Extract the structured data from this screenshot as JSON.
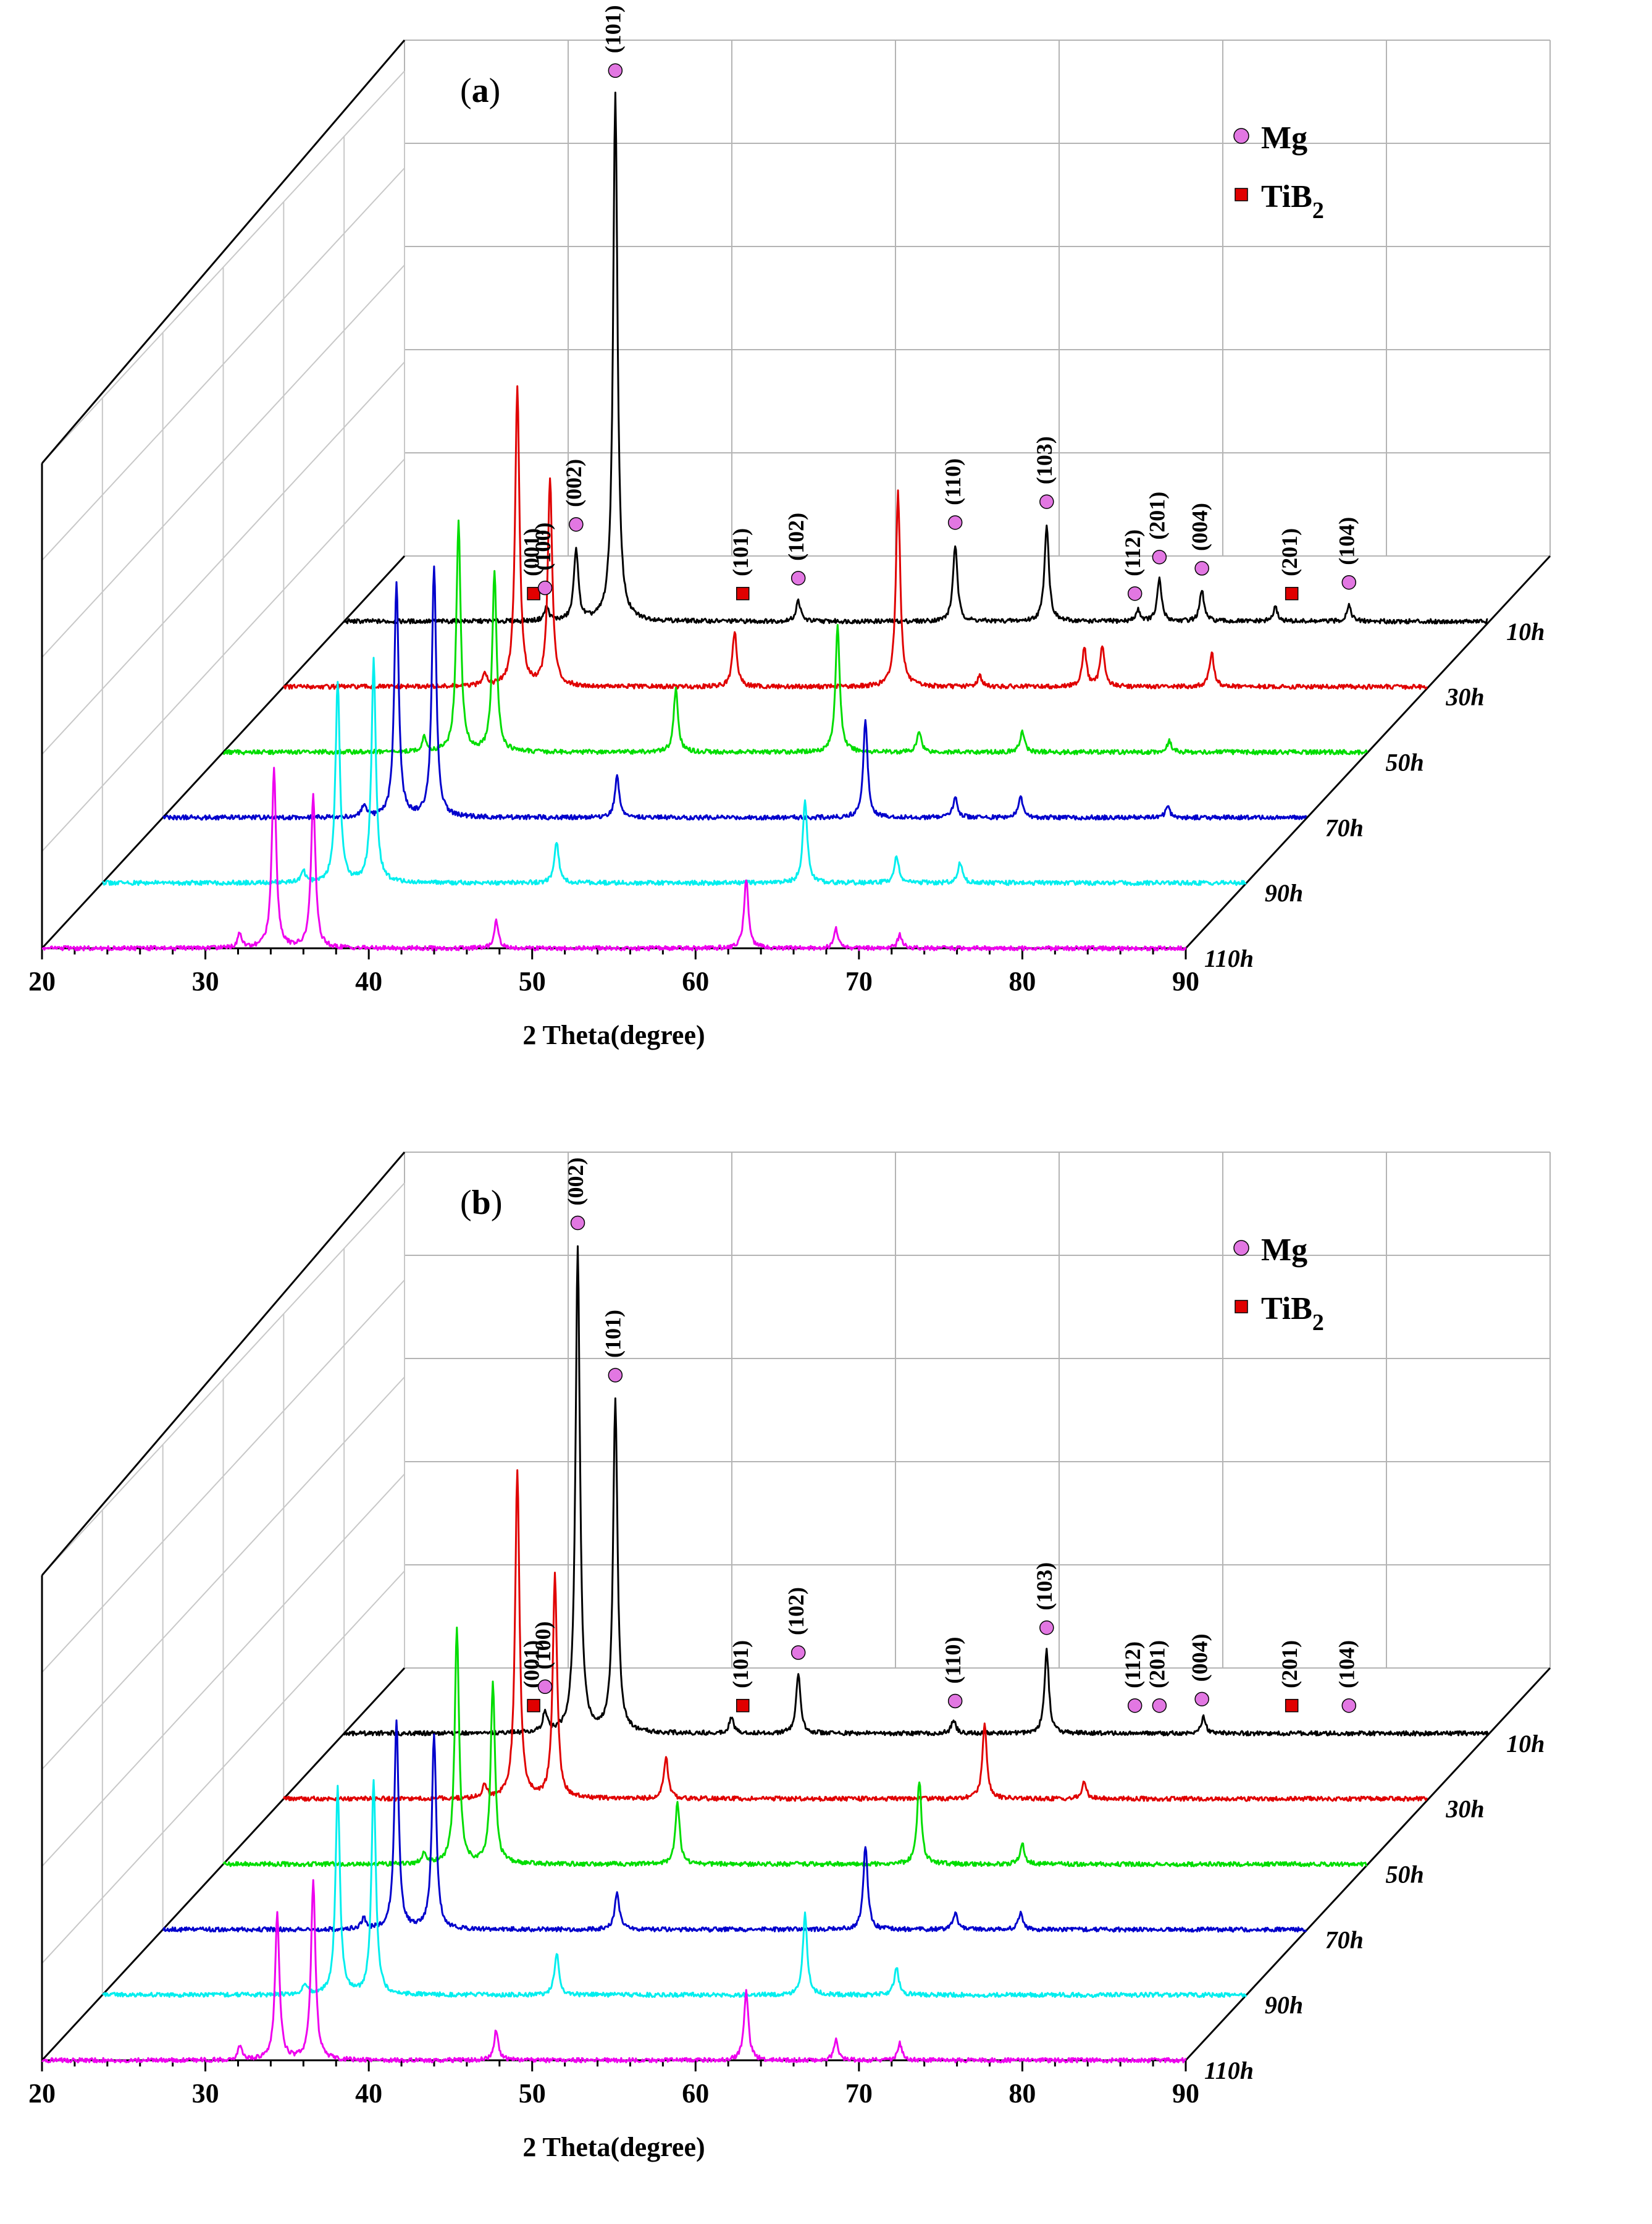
{
  "chart_data": [
    {
      "panel": "a",
      "type": "line",
      "subtype": "3d-waterfall-xrd",
      "panel_label": "a",
      "xlabel": "2 Theta(degree)",
      "xlim": [
        20,
        90
      ],
      "x_ticks": [
        "20",
        "30",
        "40",
        "50",
        "60",
        "70",
        "80",
        "90"
      ],
      "legend": [
        {
          "label": "Mg",
          "marker": "circle",
          "color": "#e277e2"
        },
        {
          "label": "TiB",
          "sub": "2",
          "marker": "square",
          "color": "#e00000"
        }
      ],
      "series": [
        {
          "name": "10h",
          "color": "#000000",
          "peaks": [
            [
              32.4,
              10
            ],
            [
              34.2,
              52
            ],
            [
              36.6,
              380
            ],
            [
              47.8,
              15
            ],
            [
              57.4,
              55
            ],
            [
              63.0,
              70
            ],
            [
              68.6,
              8
            ],
            [
              69.9,
              30
            ],
            [
              72.5,
              22
            ],
            [
              77.0,
              10
            ],
            [
              81.5,
              12
            ]
          ]
        },
        {
          "name": "30h",
          "color": "#e00000",
          "peaks": [
            [
              32.3,
              10
            ],
            [
              34.3,
              215
            ],
            [
              36.3,
              150
            ],
            [
              47.6,
              40
            ],
            [
              57.6,
              140
            ],
            [
              62.6,
              8
            ],
            [
              69.0,
              28
            ],
            [
              70.1,
              30
            ],
            [
              76.8,
              25
            ]
          ]
        },
        {
          "name": "50h",
          "color": "#00dd00",
          "peaks": [
            [
              32.3,
              10
            ],
            [
              34.4,
              165
            ],
            [
              36.6,
              130
            ],
            [
              47.7,
              45
            ],
            [
              57.6,
              90
            ],
            [
              62.6,
              15
            ],
            [
              68.9,
              15
            ],
            [
              77.9,
              8
            ]
          ]
        },
        {
          "name": "70h",
          "color": "#0000cc",
          "peaks": [
            [
              32.3,
              8
            ],
            [
              34.3,
              170
            ],
            [
              36.6,
              180
            ],
            [
              47.8,
              30
            ],
            [
              63.0,
              70
            ],
            [
              68.5,
              15
            ],
            [
              72.5,
              15
            ],
            [
              81.5,
              8
            ]
          ]
        },
        {
          "name": "90h",
          "color": "#00eeee",
          "peaks": [
            [
              32.3,
              8
            ],
            [
              34.4,
              145
            ],
            [
              36.6,
              160
            ],
            [
              47.8,
              30
            ],
            [
              63.0,
              60
            ],
            [
              68.6,
              20
            ],
            [
              72.5,
              15
            ]
          ]
        },
        {
          "name": "110h",
          "color": "#ee00ee",
          "peaks": [
            [
              32.1,
              10
            ],
            [
              34.2,
              130
            ],
            [
              36.6,
              110
            ],
            [
              47.8,
              20
            ],
            [
              63.1,
              50
            ],
            [
              68.6,
              14
            ],
            [
              72.5,
              10
            ]
          ]
        }
      ],
      "annotations": [
        {
          "label": "(001)",
          "x": 31.6,
          "phase": "TiB2"
        },
        {
          "label": "(100)",
          "x": 32.3,
          "phase": "Mg"
        },
        {
          "label": "(002)",
          "x": 34.2,
          "phase": "Mg"
        },
        {
          "label": "(101)",
          "x": 36.6,
          "phase": "Mg"
        },
        {
          "label": "(101)",
          "x": 44.4,
          "phase": "TiB2"
        },
        {
          "label": "(102)",
          "x": 47.8,
          "phase": "Mg"
        },
        {
          "label": "(110)",
          "x": 57.4,
          "phase": "Mg"
        },
        {
          "label": "(103)",
          "x": 63.0,
          "phase": "Mg"
        },
        {
          "label": "(112)",
          "x": 68.4,
          "phase": "Mg"
        },
        {
          "label": "(201)",
          "x": 69.9,
          "phase": "Mg"
        },
        {
          "label": "(004)",
          "x": 72.5,
          "phase": "Mg"
        },
        {
          "label": "(201)",
          "x": 78.0,
          "phase": "TiB2"
        },
        {
          "label": "(104)",
          "x": 81.5,
          "phase": "Mg"
        }
      ]
    },
    {
      "panel": "b",
      "type": "line",
      "subtype": "3d-waterfall-xrd",
      "panel_label": "b",
      "xlabel": "2 Theta(degree)",
      "xlim": [
        20,
        90
      ],
      "x_ticks": [
        "20",
        "30",
        "40",
        "50",
        "60",
        "70",
        "80",
        "90"
      ],
      "legend": [
        {
          "label": "Mg",
          "marker": "circle",
          "color": "#e277e2"
        },
        {
          "label": "TiB",
          "sub": "2",
          "marker": "square",
          "color": "#e00000"
        }
      ],
      "series": [
        {
          "name": "10h",
          "color": "#000000",
          "peaks": [
            [
              32.3,
              15
            ],
            [
              34.3,
              350
            ],
            [
              36.6,
              240
            ],
            [
              43.7,
              12
            ],
            [
              47.8,
              42
            ],
            [
              57.3,
              10
            ],
            [
              63.0,
              60
            ],
            [
              72.6,
              12
            ]
          ]
        },
        {
          "name": "30h",
          "color": "#e00000",
          "peaks": [
            [
              32.3,
              10
            ],
            [
              34.3,
              235
            ],
            [
              36.6,
              160
            ],
            [
              43.4,
              30
            ],
            [
              62.9,
              55
            ],
            [
              69.0,
              12
            ]
          ]
        },
        {
          "name": "50h",
          "color": "#00dd00",
          "peaks": [
            [
              32.3,
              8
            ],
            [
              34.3,
              170
            ],
            [
              36.5,
              130
            ],
            [
              47.8,
              45
            ],
            [
              62.6,
              60
            ],
            [
              68.9,
              15
            ]
          ]
        },
        {
          "name": "70h",
          "color": "#0000cc",
          "peaks": [
            [
              32.3,
              8
            ],
            [
              34.3,
              150
            ],
            [
              36.6,
              140
            ],
            [
              47.8,
              28
            ],
            [
              63.0,
              60
            ],
            [
              68.5,
              12
            ],
            [
              72.5,
              12
            ]
          ]
        },
        {
          "name": "90h",
          "color": "#00eeee",
          "peaks": [
            [
              32.4,
              8
            ],
            [
              34.4,
              150
            ],
            [
              36.6,
              155
            ],
            [
              47.8,
              30
            ],
            [
              63.0,
              58
            ],
            [
              68.6,
              20
            ]
          ]
        },
        {
          "name": "110h",
          "color": "#ee00ee",
          "peaks": [
            [
              32.1,
              10
            ],
            [
              34.4,
              105
            ],
            [
              36.6,
              130
            ],
            [
              47.8,
              22
            ],
            [
              63.1,
              50
            ],
            [
              68.6,
              15
            ],
            [
              72.5,
              12
            ]
          ]
        }
      ],
      "annotations": [
        {
          "label": "(001)",
          "x": 31.6,
          "phase": "TiB2"
        },
        {
          "label": "(100)",
          "x": 32.3,
          "phase": "Mg"
        },
        {
          "label": "(002)",
          "x": 34.3,
          "phase": "Mg"
        },
        {
          "label": "(101)",
          "x": 36.6,
          "phase": "Mg"
        },
        {
          "label": "(101)",
          "x": 44.4,
          "phase": "TiB2"
        },
        {
          "label": "(102)",
          "x": 47.8,
          "phase": "Mg"
        },
        {
          "label": "(110)",
          "x": 57.4,
          "phase": "Mg"
        },
        {
          "label": "(103)",
          "x": 63.0,
          "phase": "Mg"
        },
        {
          "label": "(112)",
          "x": 68.4,
          "phase": "Mg"
        },
        {
          "label": "(201)",
          "x": 69.9,
          "phase": "Mg"
        },
        {
          "label": "(004)",
          "x": 72.5,
          "phase": "Mg"
        },
        {
          "label": "(201)",
          "x": 78.0,
          "phase": "TiB2"
        },
        {
          "label": "(104)",
          "x": 81.5,
          "phase": "Mg"
        }
      ]
    }
  ]
}
